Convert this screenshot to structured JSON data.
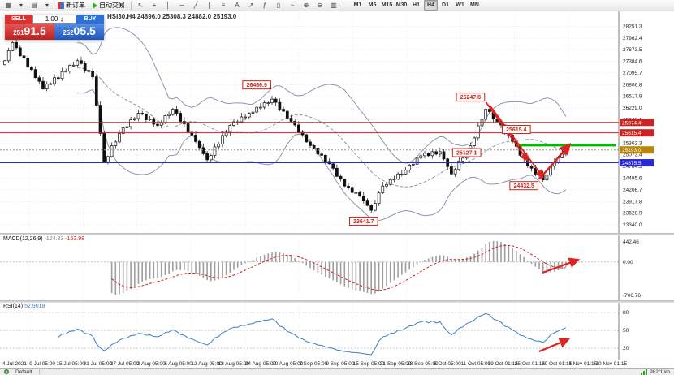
{
  "toolbar": {
    "new_order_label": "新订单",
    "autotrade_label": "自动交易",
    "icons_left": [
      {
        "name": "new-chart-icon",
        "glyph": "▦"
      },
      {
        "name": "new-chart-dropdown-icon",
        "glyph": "▾"
      },
      {
        "name": "profiles-icon",
        "glyph": "▤"
      },
      {
        "name": "profiles-dropdown-icon",
        "glyph": "▾"
      }
    ],
    "icons_mid": [
      {
        "name": "cursor-icon",
        "glyph": "↖"
      },
      {
        "name": "crosshair-icon",
        "glyph": "+"
      },
      {
        "name": "vertical-line-icon",
        "glyph": "│"
      },
      {
        "name": "horizontal-line-icon",
        "glyph": "─"
      },
      {
        "name": "trendline-icon",
        "glyph": "╱"
      },
      {
        "name": "equidistant-channel-icon",
        "glyph": "∥"
      },
      {
        "name": "fibonacci-icon",
        "glyph": "≡"
      },
      {
        "name": "text-label-icon",
        "glyph": "A"
      },
      {
        "name": "arrow-object-icon",
        "glyph": "↗"
      },
      {
        "name": "indicators-icon",
        "glyph": "ƒ"
      },
      {
        "name": "candles-view-icon",
        "glyph": "▯"
      },
      {
        "name": "line-chart-icon",
        "glyph": "~"
      },
      {
        "name": "zoom-in-icon",
        "glyph": "⊕"
      },
      {
        "name": "zoom-out-icon",
        "glyph": "⊖"
      },
      {
        "name": "tile-windows-icon",
        "glyph": "▥"
      }
    ],
    "timeframes": [
      "M1",
      "M5",
      "M15",
      "M30",
      "H1",
      "H4",
      "D1",
      "W1",
      "MN"
    ],
    "active_timeframe": "H4"
  },
  "trade_panel": {
    "sell_label": "SELL",
    "buy_label": "BUY",
    "volume": "1.00",
    "sell_price": "25191.5",
    "buy_price": "25205.5"
  },
  "status_bar": {
    "profile": "Default",
    "connection": "982/1 kb"
  },
  "chart_data": {
    "type": "candlestick",
    "symbol": "HSI30",
    "timeframe": "H4",
    "symbol_ohlc_line": "HSI30,H4 24896.0 25308.3 24882.0 25193.0",
    "first_open": 27300,
    "closes": [
      27400,
      27650,
      27850,
      27720,
      27520,
      27460,
      27240,
      27180,
      26980,
      26890,
      26700,
      26820,
      26830,
      26980,
      26960,
      27130,
      27140,
      27280,
      27290,
      27400,
      27330,
      27160,
      27130,
      27000,
      26300,
      25600,
      24900,
      25030,
      25300,
      25390,
      25600,
      25740,
      25770,
      25940,
      25970,
      26100,
      26080,
      25940,
      25960,
      25830,
      25800,
      25870,
      26040,
      26070,
      26200,
      26100,
      25900,
      25840,
      25630,
      25560,
      25400,
      25250,
      25100,
      24950,
      25060,
      25270,
      25340,
      25550,
      25630,
      25800,
      25890,
      25890,
      26010,
      26010,
      26100,
      26130,
      26250,
      26250,
      26360,
      26360,
      26450,
      26370,
      26200,
      26150,
      25980,
      25900,
      25810,
      25630,
      25570,
      25390,
      25300,
      25240,
      25090,
      25060,
      24910,
      24850,
      24740,
      24540,
      24470,
      24300,
      24270,
      24140,
      24140,
      24050,
      23930,
      23820,
      23700,
      23870,
      24130,
      24300,
      24340,
      24460,
      24470,
      24600,
      24600,
      24700,
      24820,
      24840,
      24990,
      25050,
      25110,
      25050,
      25150,
      25090,
      25150,
      24970,
      24780,
      24600,
      24710,
      24920,
      24990,
      25200,
      25300,
      25490,
      25790,
      25950,
      26200,
      26140,
      25960,
      25900,
      25810,
      25610,
      25560,
      25400,
      25280,
      25060,
      24990,
      24800,
      24740,
      24590,
      24570,
      24450,
      24570,
      24790,
      24900,
      25000,
      25090,
      25193
    ],
    "price_range": {
      "max": 28620,
      "min": 23140
    },
    "price_axis_labels": [
      "28251.3",
      "27962.4",
      "27673.5",
      "27384.6",
      "27095.7",
      "26806.8",
      "26517.9",
      "26229.0",
      "25940.1",
      "25651.2",
      "25362.3",
      "25073.4",
      "24784.5",
      "24495.6",
      "24206.7",
      "23917.8",
      "23628.9",
      "23340.0"
    ],
    "time_labels": [
      "4 Jul 2021",
      "9 Jul 05:00",
      "15 Jul 05:00",
      "21 Jul 05:00",
      "27 Jul 05:00",
      "2 Aug 05:00",
      "6 Aug 05:00",
      "12 Aug 05:00",
      "18 Aug 05:00",
      "24 Aug 05:00",
      "30 Aug 05:00",
      "3 Sep 05:00",
      "9 Sep 05:00",
      "15 Sep 05:00",
      "21 Sep 05:00",
      "28 Sep 05:00",
      "5 Oct 05:00",
      "11 Oct 05:00",
      "19 Oct 01:15",
      "25 Oct 01:15",
      "29 Oct 01:15",
      "4 Nov 01:15",
      "10 Nov 01:15"
    ],
    "bollinger": {
      "period": 20,
      "deviation": 2,
      "color": "#8b96ad"
    },
    "annotations": {
      "hlines": [
        {
          "price": 25874.4,
          "color": "#cc2222",
          "badge": "25874.4"
        },
        {
          "price": 25615.4,
          "color": "#cc2222",
          "badge": "25615.4"
        },
        {
          "price": 24875.5,
          "color": "#2929d6",
          "badge": "24875.5"
        }
      ],
      "current_price": {
        "price": 25193.0,
        "badge": "25193.0",
        "badge_color": "#b8860b"
      },
      "green_line": {
        "price": 25310.0,
        "from_index": 134,
        "color": "#00bb00"
      },
      "trendlines": [
        {
          "from": [
            126,
            26380
          ],
          "to": [
            137,
            24930
          ],
          "color": "#dd2222"
        },
        {
          "from": [
            127,
            26300
          ],
          "to": [
            141,
            24520
          ],
          "color": "#dd2222"
        }
      ],
      "arrows": [
        {
          "from": [
            140,
            24470
          ],
          "to": [
            148,
            25330
          ],
          "color": "#dd2222"
        }
      ],
      "callouts": [
        {
          "index": 66,
          "price": 26800,
          "text": "26466.9"
        },
        {
          "index": 122,
          "price": 26500,
          "text": "26247.8"
        },
        {
          "index": 134,
          "price": 25700,
          "text": "25615.4"
        },
        {
          "index": 121,
          "price": 25127,
          "text": "25127.1"
        },
        {
          "index": 136,
          "price": 24310,
          "text": "24432.5"
        },
        {
          "index": 94,
          "price": 23430,
          "text": "23641.7"
        }
      ]
    },
    "macd": {
      "label": "MACD(12,26,9)",
      "value1": "-124.83",
      "value2": "-163.98",
      "axis_labels": [
        "442.46",
        "0.00",
        "-706.76"
      ],
      "arrow": {
        "from": [
          668,
          46
        ],
        "to": [
          712,
          30
        ]
      }
    },
    "rsi": {
      "label": "RSI(14)",
      "value": "52.9018",
      "axis_labels": [
        "80",
        "50",
        "20"
      ],
      "levels": [
        80,
        50,
        20
      ],
      "arrow": {
        "from": [
          664,
          60
        ],
        "to": [
          700,
          45
        ]
      }
    }
  }
}
